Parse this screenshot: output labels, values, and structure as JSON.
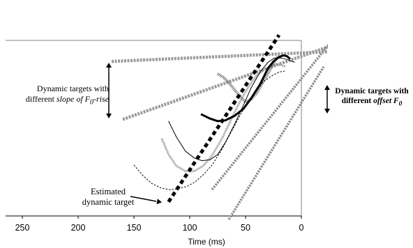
{
  "chart_data": {
    "type": "line",
    "xlabel": "Time (ms)",
    "xlim": [
      265,
      0
    ],
    "x_reversed": true,
    "x_ticks": [
      250,
      200,
      150,
      100,
      50,
      0
    ],
    "ylim": [
      0,
      100
    ],
    "annotations": {
      "slope_left": [
        "Dynamic targets with",
        "different ",
        "slope of F",
        "0",
        "-rise"
      ],
      "offset_right": [
        "Dynamic targets with",
        "different ",
        "offset F",
        "0"
      ],
      "estimated": [
        "Estimated",
        "dynamic target"
      ]
    },
    "series": [
      {
        "style": "estimated-target",
        "x": [
          119,
          20
        ],
        "y": [
          8,
          103
        ]
      },
      {
        "style": "slope-target",
        "x": [
          170,
          -40
        ],
        "y": [
          88,
          94
        ]
      },
      {
        "style": "slope-target",
        "x": [
          160,
          -40
        ],
        "y": [
          55,
          100
        ]
      },
      {
        "style": "offset-target",
        "x": [
          65,
          -20
        ],
        "y": [
          -2,
          85
        ]
      },
      {
        "style": "offset-target",
        "x": [
          80,
          -30
        ],
        "y": [
          15,
          102
        ]
      },
      {
        "style": "contour-thick",
        "x": [
          90,
          82,
          75,
          68,
          60,
          52,
          45,
          37,
          30,
          25,
          20,
          16,
          13,
          10
        ],
        "y": [
          58,
          55.5,
          54,
          54.5,
          57,
          61,
          67,
          75,
          84,
          88,
          90.5,
          91.5,
          91,
          89.5
        ]
      },
      {
        "style": "contour-thin",
        "x": [
          119,
          112,
          104,
          96,
          89,
          82,
          75,
          68,
          60,
          52,
          45,
          37,
          30,
          24,
          18,
          12,
          6
        ],
        "y": [
          54,
          45,
          37,
          33,
          31.5,
          32,
          35,
          42,
          52,
          63,
          73,
          82,
          87.5,
          90,
          90,
          89,
          87.5
        ]
      },
      {
        "style": "contour-dashed",
        "x": [
          150,
          142,
          134,
          126,
          118,
          110,
          102,
          95,
          87,
          80,
          72,
          64,
          56,
          49,
          41,
          34,
          26,
          20,
          15
        ],
        "y": [
          29,
          23,
          18.5,
          16,
          15,
          15.5,
          17,
          19.5,
          24,
          29,
          37,
          46.5,
          56,
          64,
          70.5,
          76.5,
          80,
          82,
          82.5
        ]
      },
      {
        "style": "contour-gray",
        "x": [
          125,
          119,
          112,
          104,
          96,
          88,
          80,
          72,
          64,
          56,
          48,
          40,
          33,
          27,
          22,
          18,
          14
        ],
        "y": [
          44,
          35,
          28.5,
          25.5,
          25.5,
          28.5,
          34.5,
          43,
          53.5,
          64,
          73,
          80,
          83.5,
          85.5,
          86.5,
          86,
          85
        ]
      },
      {
        "style": "contour-dotted",
        "x": [
          75,
          70,
          65,
          60,
          55,
          50,
          45,
          40,
          35,
          30,
          25,
          22,
          20
        ],
        "y": [
          81,
          79,
          76,
          72,
          68,
          65,
          66.5,
          70,
          75.5,
          81,
          87,
          90,
          91
        ]
      }
    ]
  }
}
